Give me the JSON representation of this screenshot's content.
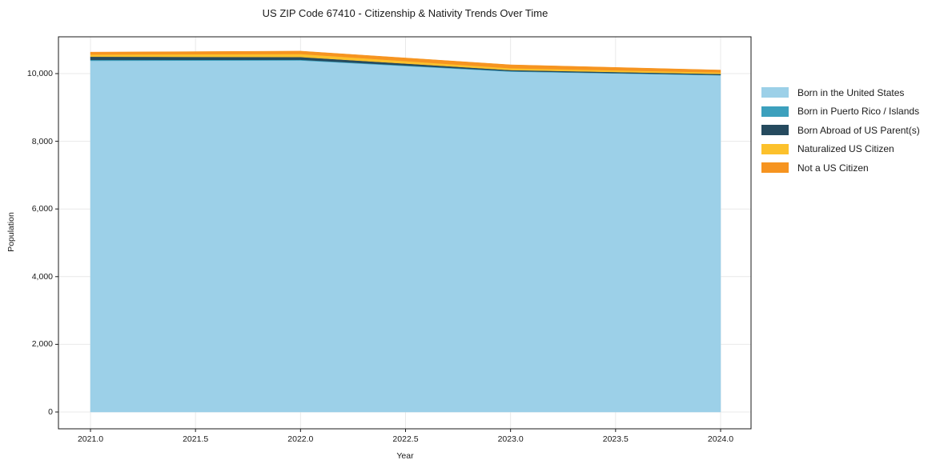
{
  "figure": {
    "title": "US ZIP Code 67410 - Citizenship & Nativity Trends Over Time",
    "xlabel": "Year",
    "ylabel": "Population"
  },
  "chart_data": {
    "type": "area",
    "stacked": true,
    "title": "US ZIP Code 67410 - Citizenship & Nativity Trends Over Time",
    "xlabel": "Year",
    "ylabel": "Population",
    "x": [
      2021,
      2022,
      2023,
      2024
    ],
    "series": [
      {
        "name": "Born in the United States",
        "color": "#9cd0e8",
        "values": [
          10380,
          10390,
          10060,
          9950
        ]
      },
      {
        "name": "Born in Puerto Rico / Islands",
        "color": "#3ca0bd",
        "values": [
          25,
          20,
          15,
          10
        ]
      },
      {
        "name": "Born Abroad of US Parent(s)",
        "color": "#254a5e",
        "values": [
          95,
          80,
          30,
          30
        ]
      },
      {
        "name": "Naturalized US Citizen",
        "color": "#fcc12c",
        "values": [
          65,
          90,
          55,
          45
        ]
      },
      {
        "name": "Not a US Citizen",
        "color": "#f69420",
        "values": [
          70,
          85,
          100,
          70
        ]
      }
    ],
    "x_ticks": [
      2021.0,
      2021.5,
      2022.0,
      2022.5,
      2023.0,
      2023.5,
      2024.0
    ],
    "x_tick_labels": [
      "2021.0",
      "2021.5",
      "2022.0",
      "2022.5",
      "2023.0",
      "2023.5",
      "2024.0"
    ],
    "y_ticks": [
      0,
      2000,
      4000,
      6000,
      8000,
      10000
    ],
    "y_tick_labels": [
      "0",
      "2,000",
      "4,000",
      "6,000",
      "8,000",
      "10,000"
    ],
    "xlim": [
      2020.85,
      2024.15
    ],
    "ylim": [
      -500,
      11090
    ],
    "grid": true,
    "grid_color": "#e9e9e9",
    "border_color": "#1a1a1a",
    "legend_position": "right"
  }
}
